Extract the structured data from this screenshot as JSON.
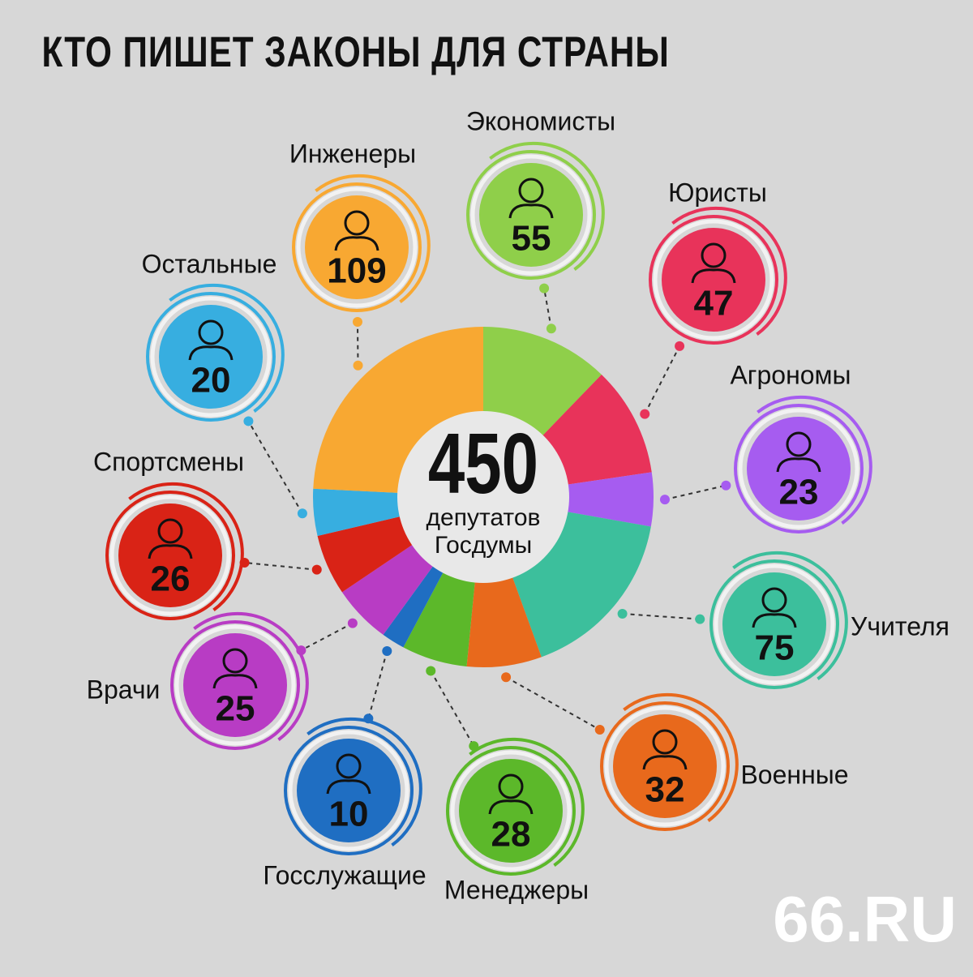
{
  "chart_data": {
    "type": "donut",
    "title": "КТО ПИШЕТ ЗАКОНЫ ДЛЯ СТРАНЫ",
    "categories": [
      "Экономисты",
      "Юристы",
      "Агрономы",
      "Учителя",
      "Военные",
      "Менеджеры",
      "Госслужащие",
      "Врачи",
      "Спортсмены",
      "Остальные",
      "Инженеры"
    ],
    "values": [
      55,
      47,
      23,
      75,
      32,
      28,
      10,
      25,
      26,
      20,
      109
    ],
    "colors": [
      "#8fcf4a",
      "#e8335a",
      "#a65cf0",
      "#3cbf9c",
      "#e8691c",
      "#5cb82a",
      "#1f6ec2",
      "#b83cc4",
      "#d92316",
      "#37aee0",
      "#f8a832"
    ],
    "total": 450,
    "total_label": [
      "депутатов",
      "Госдумы"
    ]
  },
  "brand": "66.RU"
}
